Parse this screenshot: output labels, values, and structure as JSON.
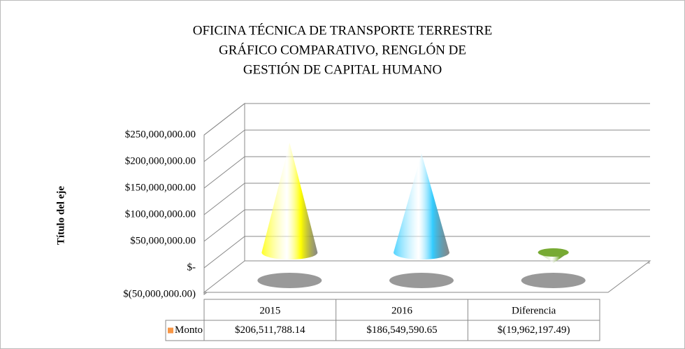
{
  "chart_data": {
    "type": "cone3d",
    "title": [
      "OFICINA TÉCNICA DE TRANSPORTE TERRESTRE",
      "GRÁFICO COMPARATIVO, RENGLÓN DE",
      "GESTIÓN DE CAPITAL HUMANO"
    ],
    "y_label": "Título del eje",
    "categories": [
      "2015",
      "2016",
      "Diferencia"
    ],
    "series": [
      {
        "name": "Monto",
        "color": "#f79646",
        "point_colors": [
          "#ffff00",
          "#33ccff",
          "#77aa33"
        ],
        "values": [
          206511788.14,
          186549590.65,
          -19962197.49
        ],
        "value_labels": [
          "$206,511,788.14",
          "$186,549,590.65",
          "$(19,962,197.49)"
        ]
      }
    ],
    "ylim": [
      -50000000,
      250000000
    ],
    "yticks": [
      {
        "value": -50000000,
        "label": "$(50,000,000.00)"
      },
      {
        "value": 0,
        "label": "$-"
      },
      {
        "value": 50000000,
        "label": "$50,000,000.00"
      },
      {
        "value": 100000000,
        "label": "$100,000,000.00"
      },
      {
        "value": 150000000,
        "label": "$150,000,000.00"
      },
      {
        "value": 200000000,
        "label": "$200,000,000.00"
      },
      {
        "value": 250000000,
        "label": "$250,000,000.00"
      }
    ],
    "grid": true,
    "data_table": true
  }
}
